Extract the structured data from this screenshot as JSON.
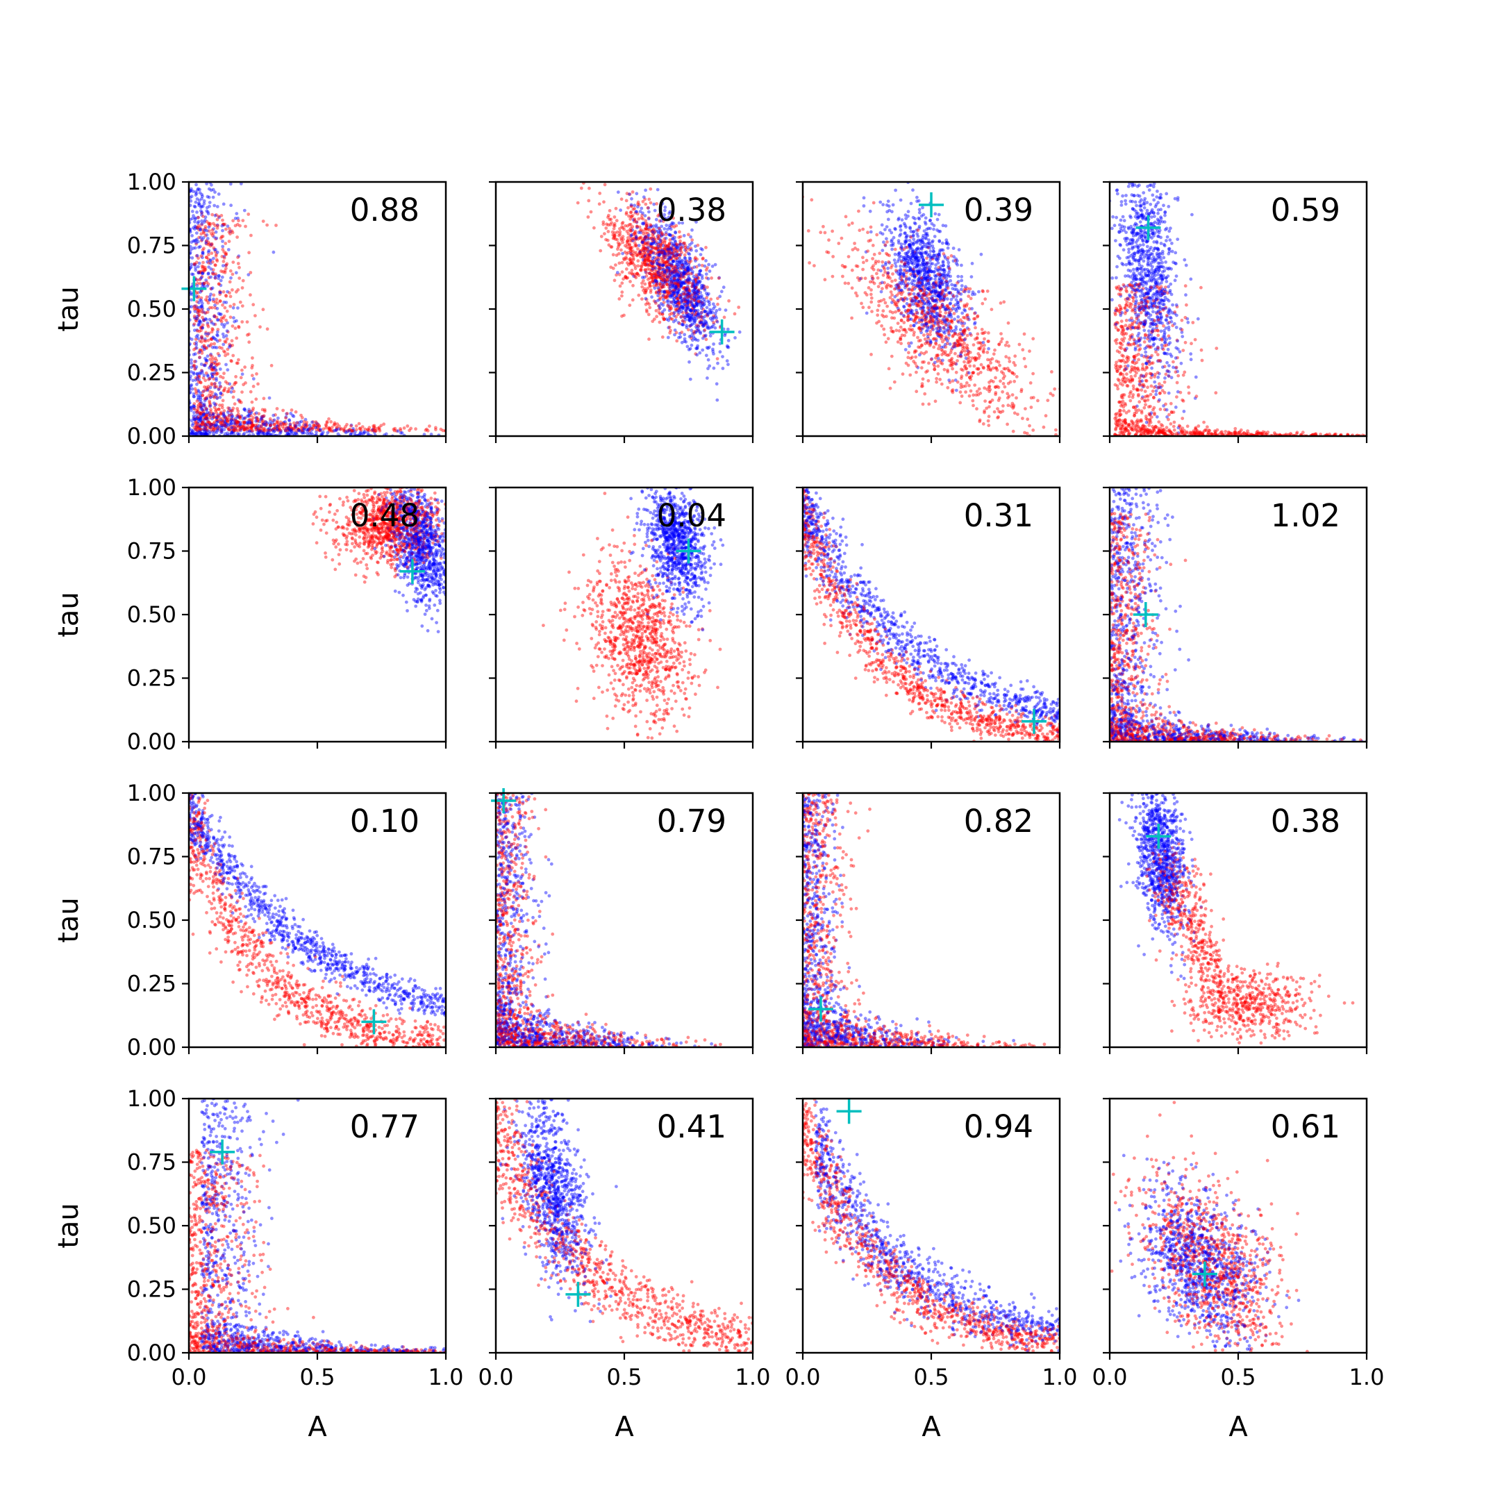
{
  "chart_data": {
    "type": "scatter",
    "layout_grid": "4x4",
    "xlabel": "A",
    "ylabel": "tau",
    "xlim": [
      0,
      1
    ],
    "ylim": [
      0,
      1
    ],
    "x_ticks": [
      "0.0",
      "0.5",
      "1.0"
    ],
    "y_ticks": [
      "0.00",
      "0.25",
      "0.50",
      "0.75",
      "1.00"
    ],
    "colors": {
      "series_a": "#0000ff",
      "series_b": "#ff0000",
      "marker": "#00bfbf"
    },
    "panels": [
      {
        "annotation": "0.88",
        "marker": [
          0.02,
          0.58
        ],
        "red": {
          "shape": "L",
          "x": 0.02,
          "y": 0.02,
          "sx": 0.18,
          "sy": 0.28,
          "corr": 0
        },
        "blue": {
          "shape": "L",
          "x": 0.0,
          "y": 0.0,
          "sx": 0.14,
          "sy": 0.35,
          "corr": 0
        }
      },
      {
        "annotation": "0.38",
        "marker": [
          0.88,
          0.41
        ],
        "red": {
          "shape": "G",
          "x": 0.62,
          "y": 0.68,
          "sx": 0.1,
          "sy": 0.12,
          "corr": -0.6
        },
        "blue": {
          "shape": "G",
          "x": 0.72,
          "y": 0.6,
          "sx": 0.08,
          "sy": 0.14,
          "corr": -0.7
        }
      },
      {
        "annotation": "0.39",
        "marker": [
          0.5,
          0.91
        ],
        "red": {
          "shape": "G",
          "x": 0.55,
          "y": 0.4,
          "sx": 0.18,
          "sy": 0.18,
          "corr": -0.75
        },
        "blue": {
          "shape": "G",
          "x": 0.48,
          "y": 0.62,
          "sx": 0.08,
          "sy": 0.14,
          "corr": -0.5
        }
      },
      {
        "annotation": "0.59",
        "marker": [
          0.15,
          0.82
        ],
        "red": {
          "shape": "L",
          "x": 0.02,
          "y": 0.0,
          "sx": 0.2,
          "sy": 0.15,
          "corr": 0
        },
        "blue": {
          "shape": "G",
          "x": 0.15,
          "y": 0.65,
          "sx": 0.06,
          "sy": 0.22,
          "corr": -0.3
        }
      },
      {
        "annotation": "0.48",
        "marker": [
          0.87,
          0.67
        ],
        "red": {
          "shape": "G",
          "x": 0.78,
          "y": 0.85,
          "sx": 0.1,
          "sy": 0.08,
          "corr": 0.1
        },
        "blue": {
          "shape": "G",
          "x": 0.9,
          "y": 0.78,
          "sx": 0.06,
          "sy": 0.12,
          "corr": -0.4
        }
      },
      {
        "annotation": "0.04",
        "marker": [
          0.75,
          0.75
        ],
        "red": {
          "shape": "G",
          "x": 0.55,
          "y": 0.4,
          "sx": 0.1,
          "sy": 0.16,
          "corr": -0.3
        },
        "blue": {
          "shape": "G",
          "x": 0.7,
          "y": 0.78,
          "sx": 0.06,
          "sy": 0.12,
          "corr": -0.3
        }
      },
      {
        "annotation": "0.31",
        "marker": [
          0.9,
          0.08
        ],
        "red": {
          "shape": "C",
          "x": 0.0,
          "y": 0.0,
          "sx": 0.28,
          "sy": 0.32,
          "corr": 0
        },
        "blue": {
          "shape": "C",
          "x": 0.0,
          "y": 0.04,
          "sx": 0.4,
          "sy": 0.28,
          "corr": 0
        }
      },
      {
        "annotation": "1.02",
        "marker": [
          0.14,
          0.5
        ],
        "red": {
          "shape": "L",
          "x": 0.0,
          "y": 0.0,
          "sx": 0.14,
          "sy": 0.3,
          "corr": 0
        },
        "blue": {
          "shape": "L",
          "x": 0.0,
          "y": 0.0,
          "sx": 0.16,
          "sy": 0.35,
          "corr": 0
        }
      },
      {
        "annotation": "0.10",
        "marker": [
          0.72,
          0.1
        ],
        "red": {
          "shape": "C",
          "x": 0.0,
          "y": 0.0,
          "sx": 0.25,
          "sy": 0.4,
          "corr": 0
        },
        "blue": {
          "shape": "C",
          "x": 0.0,
          "y": 0.04,
          "sx": 0.5,
          "sy": 0.2,
          "corr": 0
        }
      },
      {
        "annotation": "0.79",
        "marker": [
          0.03,
          0.97
        ],
        "red": {
          "shape": "L",
          "x": 0.0,
          "y": 0.0,
          "sx": 0.12,
          "sy": 0.4,
          "corr": 0
        },
        "blue": {
          "shape": "L",
          "x": 0.0,
          "y": 0.0,
          "sx": 0.12,
          "sy": 0.4,
          "corr": 0
        }
      },
      {
        "annotation": "0.82",
        "marker": [
          0.07,
          0.15
        ],
        "red": {
          "shape": "L",
          "x": 0.0,
          "y": 0.0,
          "sx": 0.14,
          "sy": 0.35,
          "corr": 0
        },
        "blue": {
          "shape": "L",
          "x": 0.0,
          "y": 0.0,
          "sx": 0.1,
          "sy": 0.45,
          "corr": 0
        }
      },
      {
        "annotation": "0.38",
        "marker": [
          0.19,
          0.83
        ],
        "red": {
          "shape": "C2",
          "x": 0.15,
          "y": 0.1,
          "sx": 0.0,
          "sy": 0.0,
          "corr": 0
        },
        "blue": {
          "shape": "G",
          "x": 0.2,
          "y": 0.75,
          "sx": 0.05,
          "sy": 0.15,
          "corr": -0.3
        }
      },
      {
        "annotation": "0.77",
        "marker": [
          0.13,
          0.79
        ],
        "red": {
          "shape": "L",
          "x": 0.0,
          "y": 0.0,
          "sx": 0.22,
          "sy": 0.25,
          "corr": 0
        },
        "blue": {
          "shape": "L",
          "x": 0.05,
          "y": 0.0,
          "sx": 0.18,
          "sy": 0.4,
          "corr": 0
        }
      },
      {
        "annotation": "0.41",
        "marker": [
          0.32,
          0.23
        ],
        "red": {
          "shape": "C",
          "x": 0.0,
          "y": 0.0,
          "sx": 0.35,
          "sy": 0.4,
          "corr": 0
        },
        "blue": {
          "shape": "G",
          "x": 0.22,
          "y": 0.65,
          "sx": 0.07,
          "sy": 0.18,
          "corr": -0.5
        }
      },
      {
        "annotation": "0.94",
        "marker": [
          0.18,
          0.95
        ],
        "red": {
          "shape": "C",
          "x": 0.0,
          "y": 0.0,
          "sx": 0.3,
          "sy": 0.35,
          "corr": 0
        },
        "blue": {
          "shape": "C",
          "x": 0.05,
          "y": 0.03,
          "sx": 0.35,
          "sy": 0.35,
          "corr": 0
        }
      },
      {
        "annotation": "0.61",
        "marker": [
          0.37,
          0.31
        ],
        "red": {
          "shape": "G",
          "x": 0.4,
          "y": 0.35,
          "sx": 0.14,
          "sy": 0.18,
          "corr": -0.5
        },
        "blue": {
          "shape": "G",
          "x": 0.35,
          "y": 0.35,
          "sx": 0.12,
          "sy": 0.15,
          "corr": -0.4
        }
      }
    ]
  }
}
